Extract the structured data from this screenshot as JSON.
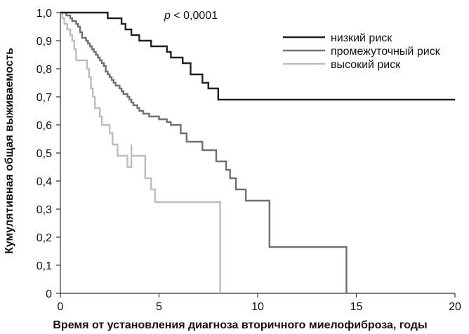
{
  "chart_data": {
    "type": "line",
    "title": "",
    "annotation": {
      "symbol": "p",
      "text": " < 0,0001"
    },
    "xlabel": "Время от установления диагноза вторичного миелофиброза, годы",
    "ylabel": "Кумулятивная общая выживаемость",
    "xlim": [
      0,
      20
    ],
    "ylim": [
      0,
      1
    ],
    "x_ticks": [
      0,
      5,
      10,
      15,
      20
    ],
    "x_tick_labels": [
      "0",
      "5",
      "10",
      "15",
      "20"
    ],
    "y_ticks": [
      0,
      0.1,
      0.2,
      0.3,
      0.4,
      0.5,
      0.6,
      0.7,
      0.8,
      0.9,
      1.0
    ],
    "y_tick_labels": [
      "0",
      "0,1",
      "0,2",
      "0,3",
      "0,4",
      "0,5",
      "0,6",
      "0,7",
      "0,8",
      "0,9",
      "1,0"
    ],
    "grid": false,
    "legend_position": "top-right",
    "series": [
      {
        "name": "низкий риск",
        "color": "#202020",
        "step": true,
        "points": [
          [
            0,
            1.0
          ],
          [
            2.4,
            1.0
          ],
          [
            2.4,
            0.98
          ],
          [
            3.1,
            0.98
          ],
          [
            3.1,
            0.96
          ],
          [
            3.3,
            0.96
          ],
          [
            3.3,
            0.94
          ],
          [
            3.6,
            0.94
          ],
          [
            3.6,
            0.92
          ],
          [
            4.0,
            0.92
          ],
          [
            4.0,
            0.9
          ],
          [
            4.6,
            0.9
          ],
          [
            4.6,
            0.88
          ],
          [
            5.4,
            0.88
          ],
          [
            5.4,
            0.86
          ],
          [
            5.6,
            0.86
          ],
          [
            5.6,
            0.84
          ],
          [
            6.2,
            0.84
          ],
          [
            6.2,
            0.82
          ],
          [
            6.6,
            0.82
          ],
          [
            6.6,
            0.78
          ],
          [
            7.2,
            0.78
          ],
          [
            7.2,
            0.75
          ],
          [
            7.5,
            0.75
          ],
          [
            7.5,
            0.73
          ],
          [
            8.0,
            0.73
          ],
          [
            8.0,
            0.69
          ],
          [
            20.0,
            0.69
          ]
        ]
      },
      {
        "name": "промежуточный риск",
        "color": "#707070",
        "step": true,
        "points": [
          [
            0,
            1.0
          ],
          [
            0.3,
            1.0
          ],
          [
            0.3,
            0.99
          ],
          [
            0.5,
            0.99
          ],
          [
            0.5,
            0.98
          ],
          [
            0.6,
            0.98
          ],
          [
            0.6,
            0.97
          ],
          [
            0.8,
            0.97
          ],
          [
            0.8,
            0.96
          ],
          [
            0.9,
            0.96
          ],
          [
            0.9,
            0.95
          ],
          [
            1.0,
            0.95
          ],
          [
            1.0,
            0.93
          ],
          [
            1.1,
            0.93
          ],
          [
            1.1,
            0.91
          ],
          [
            1.3,
            0.91
          ],
          [
            1.3,
            0.9
          ],
          [
            1.4,
            0.9
          ],
          [
            1.4,
            0.89
          ],
          [
            1.5,
            0.89
          ],
          [
            1.5,
            0.88
          ],
          [
            1.6,
            0.88
          ],
          [
            1.6,
            0.87
          ],
          [
            1.7,
            0.87
          ],
          [
            1.7,
            0.86
          ],
          [
            1.8,
            0.86
          ],
          [
            1.8,
            0.85
          ],
          [
            1.9,
            0.85
          ],
          [
            1.9,
            0.84
          ],
          [
            2.0,
            0.84
          ],
          [
            2.0,
            0.83
          ],
          [
            2.1,
            0.83
          ],
          [
            2.1,
            0.82
          ],
          [
            2.2,
            0.82
          ],
          [
            2.2,
            0.81
          ],
          [
            2.3,
            0.81
          ],
          [
            2.3,
            0.79
          ],
          [
            2.4,
            0.79
          ],
          [
            2.4,
            0.78
          ],
          [
            2.5,
            0.78
          ],
          [
            2.5,
            0.77
          ],
          [
            2.6,
            0.77
          ],
          [
            2.6,
            0.76
          ],
          [
            2.7,
            0.76
          ],
          [
            2.7,
            0.75
          ],
          [
            2.8,
            0.75
          ],
          [
            2.8,
            0.74
          ],
          [
            3.0,
            0.74
          ],
          [
            3.0,
            0.73
          ],
          [
            3.1,
            0.73
          ],
          [
            3.1,
            0.72
          ],
          [
            3.2,
            0.72
          ],
          [
            3.2,
            0.71
          ],
          [
            3.4,
            0.71
          ],
          [
            3.4,
            0.7
          ],
          [
            3.5,
            0.7
          ],
          [
            3.5,
            0.69
          ],
          [
            3.6,
            0.69
          ],
          [
            3.6,
            0.68
          ],
          [
            3.7,
            0.68
          ],
          [
            3.7,
            0.67
          ],
          [
            3.9,
            0.67
          ],
          [
            3.9,
            0.66
          ],
          [
            4.0,
            0.66
          ],
          [
            4.0,
            0.65
          ],
          [
            4.2,
            0.65
          ],
          [
            4.2,
            0.64
          ],
          [
            4.5,
            0.64
          ],
          [
            4.5,
            0.63
          ],
          [
            5.0,
            0.63
          ],
          [
            5.0,
            0.62
          ],
          [
            5.4,
            0.62
          ],
          [
            5.4,
            0.61
          ],
          [
            5.6,
            0.61
          ],
          [
            5.6,
            0.6
          ],
          [
            6.1,
            0.6
          ],
          [
            6.1,
            0.57
          ],
          [
            6.4,
            0.57
          ],
          [
            6.4,
            0.54
          ],
          [
            7.2,
            0.54
          ],
          [
            7.2,
            0.51
          ],
          [
            7.9,
            0.51
          ],
          [
            7.9,
            0.47
          ],
          [
            8.4,
            0.47
          ],
          [
            8.4,
            0.44
          ],
          [
            8.6,
            0.44
          ],
          [
            8.6,
            0.41
          ],
          [
            8.9,
            0.41
          ],
          [
            8.9,
            0.37
          ],
          [
            9.4,
            0.37
          ],
          [
            9.4,
            0.33
          ],
          [
            10.6,
            0.33
          ],
          [
            10.6,
            0.165
          ],
          [
            14.5,
            0.165
          ],
          [
            14.5,
            0.0
          ]
        ]
      },
      {
        "name": "высокий риск",
        "color": "#bdbdbd",
        "step": true,
        "points": [
          [
            0,
            1.0
          ],
          [
            0.1,
            1.0
          ],
          [
            0.1,
            0.98
          ],
          [
            0.2,
            0.98
          ],
          [
            0.2,
            0.96
          ],
          [
            0.35,
            0.96
          ],
          [
            0.35,
            0.94
          ],
          [
            0.5,
            0.94
          ],
          [
            0.5,
            0.92
          ],
          [
            0.6,
            0.92
          ],
          [
            0.6,
            0.9
          ],
          [
            0.7,
            0.9
          ],
          [
            0.7,
            0.87
          ],
          [
            0.8,
            0.87
          ],
          [
            0.8,
            0.83
          ],
          [
            1.35,
            0.83
          ],
          [
            1.35,
            0.8
          ],
          [
            1.45,
            0.8
          ],
          [
            1.45,
            0.77
          ],
          [
            1.55,
            0.77
          ],
          [
            1.55,
            0.73
          ],
          [
            1.65,
            0.73
          ],
          [
            1.65,
            0.7
          ],
          [
            1.75,
            0.7
          ],
          [
            1.75,
            0.66
          ],
          [
            2.0,
            0.66
          ],
          [
            2.0,
            0.63
          ],
          [
            2.1,
            0.63
          ],
          [
            2.1,
            0.6
          ],
          [
            2.5,
            0.6
          ],
          [
            2.5,
            0.57
          ],
          [
            2.65,
            0.57
          ],
          [
            2.65,
            0.53
          ],
          [
            2.9,
            0.53
          ],
          [
            2.9,
            0.49
          ],
          [
            3.4,
            0.49
          ],
          [
            3.4,
            0.45
          ],
          [
            3.6,
            0.45
          ],
          [
            3.6,
            0.53
          ],
          [
            3.6,
            0.49
          ],
          [
            4.3,
            0.49
          ],
          [
            4.3,
            0.41
          ],
          [
            4.6,
            0.41
          ],
          [
            4.6,
            0.37
          ],
          [
            4.8,
            0.37
          ],
          [
            4.8,
            0.325
          ],
          [
            8.1,
            0.325
          ],
          [
            8.1,
            0.0
          ]
        ]
      }
    ]
  }
}
